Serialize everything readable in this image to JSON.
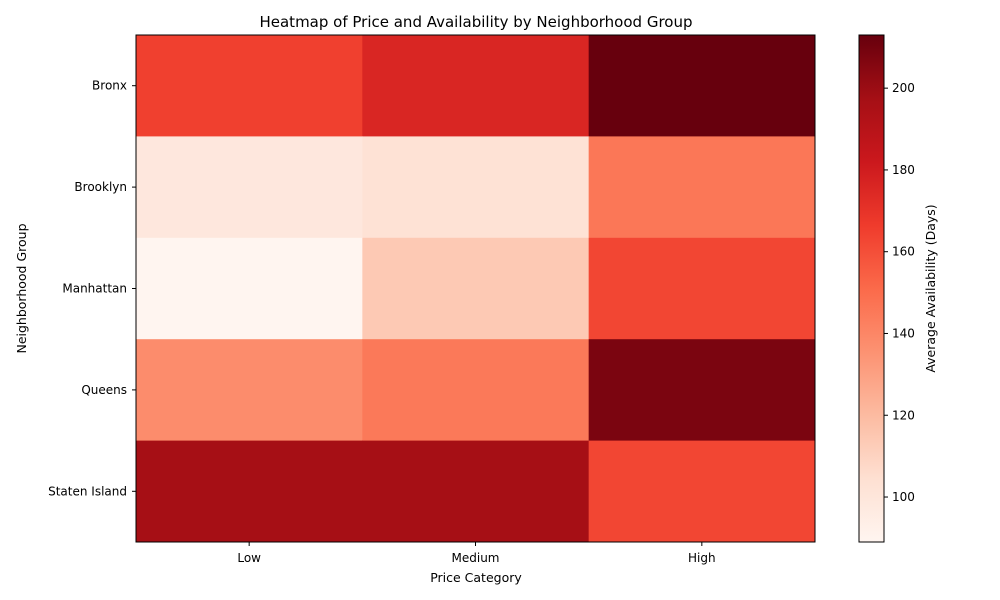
{
  "chart_data": {
    "type": "heatmap",
    "title": "Heatmap of Price and Availability by Neighborhood Group",
    "xlabel": "Price Category",
    "ylabel": "Neighborhood Group",
    "x_categories": [
      "Low",
      "Medium",
      "High"
    ],
    "y_categories": [
      "Bronx",
      "Brooklyn",
      "Manhattan",
      "Queens",
      "Staten Island"
    ],
    "values": [
      [
        165,
        176,
        213
      ],
      [
        99,
        103,
        146
      ],
      [
        89,
        114,
        163
      ],
      [
        138,
        145,
        208
      ],
      [
        197,
        197,
        163
      ]
    ],
    "colorbar": {
      "label": "Average Availability (Days)",
      "min": 89,
      "max": 213,
      "ticks": [
        100,
        120,
        140,
        160,
        180,
        200
      ],
      "colormap": "Reds"
    },
    "grid": false
  }
}
